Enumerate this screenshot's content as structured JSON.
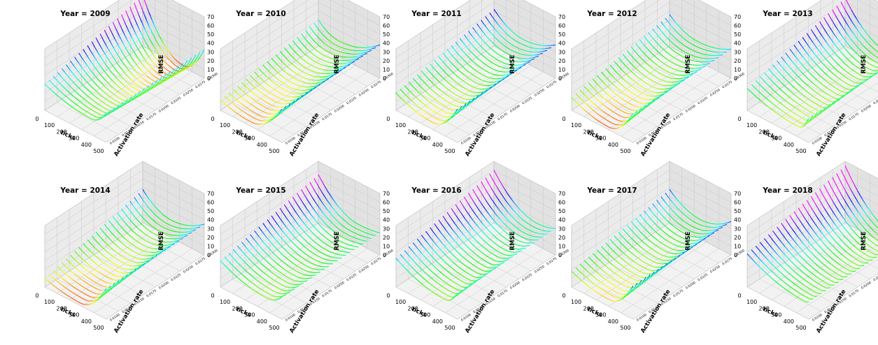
{
  "chart_data": [
    {
      "type": "surface3d",
      "title": "Year = 2009",
      "xlabel": "ticks",
      "ylabel": "Activation rate",
      "zlabel": "RMSE",
      "xticks": [
        "0",
        "100",
        "200",
        "300",
        "400",
        "500"
      ],
      "yticks": [
        "0.0100",
        "0.0125",
        "0.0150",
        "0.0175",
        "0.0200",
        "0.0225",
        "0.0250",
        "0.0275",
        "0.0300"
      ],
      "zticks": [
        "0",
        "10",
        "20",
        "30",
        "40",
        "50",
        "60",
        "70"
      ],
      "xlim": [
        0,
        500
      ],
      "ylim": [
        0.01,
        0.03
      ],
      "zlim": [
        0,
        70
      ],
      "surface": {
        "z_start": [
          30,
          58
        ],
        "z_min": [
          18,
          2
        ],
        "tick_of_min": [
          380,
          330
        ],
        "z_end": [
          33,
          33
        ]
      }
    },
    {
      "type": "surface3d",
      "title": "Year = 2010",
      "xlabel": "ticks",
      "ylabel": "Activation rate",
      "zlabel": "RMSE",
      "xticks": [
        "0",
        "100",
        "200",
        "300",
        "400",
        "500"
      ],
      "yticks": [
        "0.0100",
        "0.0125",
        "0.0150",
        "0.0175",
        "0.0200",
        "0.0225",
        "0.0250",
        "0.0275",
        "0.0300"
      ],
      "zticks": [
        "0",
        "10",
        "20",
        "30",
        "40",
        "50",
        "60",
        "70"
      ],
      "xlim": [
        0,
        500
      ],
      "ylim": [
        0.01,
        0.03
      ],
      "zlim": [
        0,
        70
      ],
      "surface": {
        "z_start": [
          12,
          30
        ],
        "z_min": [
          5,
          18
        ],
        "tick_of_min": [
          250,
          170
        ],
        "z_end": [
          38,
          38
        ]
      }
    },
    {
      "type": "surface3d",
      "title": "Year = 2011",
      "xlabel": "ticks",
      "ylabel": "Activation rate",
      "zlabel": "RMSE",
      "xticks": [
        "0",
        "100",
        "200",
        "300",
        "400",
        "500"
      ],
      "yticks": [
        "0.0100",
        "0.0125",
        "0.0150",
        "0.0175",
        "0.0200",
        "0.0225",
        "0.0250",
        "0.0275",
        "0.0300"
      ],
      "zticks": [
        "0",
        "10",
        "20",
        "30",
        "40",
        "50",
        "60",
        "70"
      ],
      "xlim": [
        0,
        500
      ],
      "ylim": [
        0.01,
        0.03
      ],
      "zlim": [
        0,
        70
      ],
      "surface": {
        "z_start": [
          20,
          42
        ],
        "z_min": [
          8,
          25
        ],
        "tick_of_min": [
          300,
          240
        ],
        "z_end": [
          38,
          38
        ]
      }
    },
    {
      "type": "surface3d",
      "title": "Year = 2012",
      "xlabel": "ticks",
      "ylabel": "Activation rate",
      "zlabel": "RMSE",
      "xticks": [
        "0",
        "100",
        "200",
        "300",
        "400",
        "500"
      ],
      "yticks": [
        "0.0100",
        "0.0125",
        "0.0150",
        "0.0175",
        "0.0200",
        "0.0225",
        "0.0250",
        "0.0275",
        "0.0300"
      ],
      "zticks": [
        "0",
        "10",
        "20",
        "30",
        "40",
        "50",
        "60",
        "70"
      ],
      "xlim": [
        0,
        500
      ],
      "ylim": [
        0.01,
        0.03
      ],
      "zlim": [
        0,
        70
      ],
      "surface": {
        "z_start": [
          15,
          36
        ],
        "z_min": [
          3,
          22
        ],
        "tick_of_min": [
          300,
          230
        ],
        "z_end": [
          33,
          33
        ]
      }
    },
    {
      "type": "surface3d",
      "title": "Year = 2013",
      "xlabel": "ticks",
      "ylabel": "Activation rate",
      "zlabel": "RMSE",
      "xticks": [
        "0",
        "100",
        "200",
        "300",
        "400",
        "500"
      ],
      "yticks": [
        "0.0100",
        "0.0125",
        "0.0150",
        "0.0175",
        "0.0200",
        "0.0225",
        "0.0250",
        "0.0275",
        "0.0300"
      ],
      "zticks": [
        "0",
        "10",
        "20",
        "30",
        "40",
        "50",
        "60",
        "70"
      ],
      "xlim": [
        0,
        500
      ],
      "ylim": [
        0.01,
        0.03
      ],
      "zlim": [
        0,
        70
      ],
      "surface": {
        "z_start": [
          25,
          55
        ],
        "z_min": [
          12,
          18
        ],
        "tick_of_min": [
          420,
          350
        ],
        "z_end": [
          28,
          28
        ]
      }
    },
    {
      "type": "surface3d",
      "title": "Year = 2014",
      "xlabel": "ticks",
      "ylabel": "Activation rate",
      "zlabel": "RMSE",
      "xticks": [
        "0",
        "100",
        "200",
        "300",
        "400",
        "500"
      ],
      "yticks": [
        "0.0100",
        "0.0125",
        "0.0150",
        "0.0175",
        "0.0200",
        "0.0225",
        "0.0250",
        "0.0275",
        "0.0300"
      ],
      "zticks": [
        "0",
        "10",
        "20",
        "30",
        "40",
        "50",
        "60",
        "70"
      ],
      "xlim": [
        0,
        500
      ],
      "ylim": [
        0.01,
        0.03
      ],
      "zlim": [
        0,
        70
      ],
      "surface": {
        "z_start": [
          10,
          38
        ],
        "z_min": [
          3,
          20
        ],
        "tick_of_min": [
          290,
          230
        ],
        "z_end": [
          35,
          35
        ]
      }
    },
    {
      "type": "surface3d",
      "title": "Year = 2015",
      "xlabel": "ticks",
      "ylabel": "Activation rate",
      "zlabel": "RMSE",
      "xticks": [
        "0",
        "100",
        "200",
        "300",
        "400",
        "500"
      ],
      "yticks": [
        "0.0100",
        "0.0125",
        "0.0150",
        "0.0175",
        "0.0200",
        "0.0225",
        "0.0250",
        "0.0275",
        "0.0300"
      ],
      "zticks": [
        "0",
        "10",
        "20",
        "30",
        "40",
        "50",
        "60",
        "70"
      ],
      "xlim": [
        0,
        500
      ],
      "ylim": [
        0.01,
        0.03
      ],
      "zlim": [
        0,
        70
      ],
      "surface": {
        "z_start": [
          30,
          55
        ],
        "z_min": [
          15,
          22
        ],
        "tick_of_min": [
          380,
          330
        ],
        "z_end": [
          25,
          25
        ]
      }
    },
    {
      "type": "surface3d",
      "title": "Year = 2016",
      "xlabel": "ticks",
      "ylabel": "Activation rate",
      "zlabel": "RMSE",
      "xticks": [
        "0",
        "100",
        "200",
        "300",
        "400",
        "500"
      ],
      "yticks": [
        "0.0100",
        "0.0125",
        "0.0150",
        "0.0175",
        "0.0200",
        "0.0225",
        "0.0250",
        "0.0275",
        "0.0300"
      ],
      "zticks": [
        "0",
        "10",
        "20",
        "30",
        "40",
        "50",
        "60",
        "70"
      ],
      "xlim": [
        0,
        500
      ],
      "ylim": [
        0.01,
        0.03
      ],
      "zlim": [
        0,
        70
      ],
      "surface": {
        "z_start": [
          33,
          60
        ],
        "z_min": [
          15,
          25
        ],
        "tick_of_min": [
          400,
          350
        ],
        "z_end": [
          30,
          30
        ]
      }
    },
    {
      "type": "surface3d",
      "title": "Year = 2017",
      "xlabel": "ticks",
      "ylabel": "Activation rate",
      "zlabel": "RMSE",
      "xticks": [
        "0",
        "100",
        "200",
        "300",
        "400",
        "500"
      ],
      "yticks": [
        "0.0100",
        "0.0125",
        "0.0150",
        "0.0175",
        "0.0200",
        "0.0225",
        "0.0250",
        "0.0275",
        "0.0300"
      ],
      "zticks": [
        "0",
        "10",
        "20",
        "30",
        "40",
        "50",
        "60",
        "70"
      ],
      "xlim": [
        0,
        500
      ],
      "ylim": [
        0.01,
        0.03
      ],
      "zlim": [
        0,
        70
      ],
      "surface": {
        "z_start": [
          18,
          38
        ],
        "z_min": [
          8,
          22
        ],
        "tick_of_min": [
          310,
          250
        ],
        "z_end": [
          38,
          38
        ]
      }
    },
    {
      "type": "surface3d",
      "title": "Year = 2018",
      "xlabel": "ticks",
      "ylabel": "Activation rate",
      "zlabel": "RMSE",
      "xticks": [
        "0",
        "100",
        "200",
        "300",
        "400",
        "500"
      ],
      "yticks": [
        "0.0100",
        "0.0125",
        "0.0150",
        "0.0175",
        "0.0200",
        "0.0225",
        "0.0250",
        "0.0275",
        "0.0300"
      ],
      "zticks": [
        "0",
        "10",
        "20",
        "30",
        "40",
        "50",
        "60",
        "70"
      ],
      "xlim": [
        0,
        500
      ],
      "ylim": [
        0.01,
        0.03
      ],
      "zlim": [
        0,
        70
      ],
      "surface": {
        "z_start": [
          38,
          65
        ],
        "z_min": [
          18,
          15
        ],
        "tick_of_min": [
          470,
          420
        ],
        "z_end": [
          20,
          20
        ]
      }
    }
  ]
}
